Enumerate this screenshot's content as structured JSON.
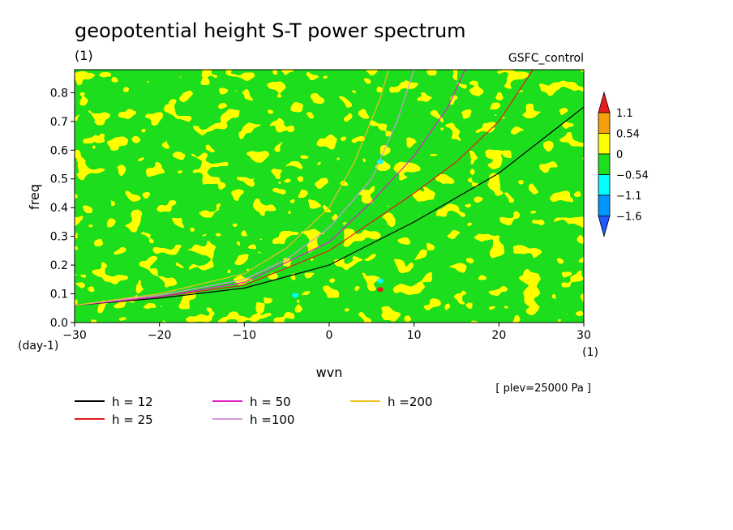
{
  "chart_data": {
    "type": "heatmap",
    "title": "geopotential height S-T power spectrum",
    "units": "(1)",
    "source_label": "GSFC_control",
    "xlabel": "wvn",
    "x_units": "(1)",
    "ylabel": "freq",
    "y_units": "(day-1)",
    "level_note": "[ plev=25000 Pa ]",
    "xlim": [
      -30,
      30
    ],
    "ylim": [
      0,
      0.88
    ],
    "xticks": [
      "−30",
      "−20",
      "−10",
      "0",
      "10",
      "20",
      "30"
    ],
    "yticks": [
      "0.0",
      "0.1",
      "0.2",
      "0.3",
      "0.4",
      "0.5",
      "0.6",
      "0.7",
      "0.8"
    ],
    "colorbar": {
      "labels": [
        "1.1",
        "0.54",
        "0",
        "−0.54",
        "−1.1",
        "−1.6"
      ],
      "colors": [
        "#e81e1e",
        "#f5a00a",
        "#ffff00",
        "#1ede1e",
        "#00ffff",
        "#0096ff",
        "#1e5aff"
      ]
    },
    "field_colors": {
      "positive": "#ffff00",
      "negative": "#1ede1e"
    },
    "spots": [
      {
        "x": 6.0,
        "y": 0.115,
        "level": "1.1"
      },
      {
        "x": 6.0,
        "y": 0.56,
        "level": "−1.1"
      },
      {
        "x": 6.0,
        "y": 0.145,
        "level": "−1.1"
      },
      {
        "x": -4.0,
        "y": 0.095,
        "level": "−1.1"
      }
    ],
    "series": [
      {
        "name": "h = 12",
        "color": "#000000",
        "h": 12,
        "x": [
          -30,
          -20,
          -10,
          0,
          10,
          20,
          30
        ],
        "y": [
          0.06,
          0.085,
          0.12,
          0.2,
          0.35,
          0.52,
          0.75
        ]
      },
      {
        "name": "h = 25",
        "color": "#e41a1a",
        "h": 25,
        "x": [
          -30,
          -20,
          -10,
          0,
          10,
          15,
          20,
          24
        ],
        "y": [
          0.06,
          0.09,
          0.13,
          0.25,
          0.45,
          0.56,
          0.7,
          0.88
        ]
      },
      {
        "name": "h = 50",
        "color": "#e01ec8",
        "h": 50,
        "x": [
          -30,
          -20,
          -10,
          0,
          5,
          10,
          14,
          16
        ],
        "y": [
          0.06,
          0.09,
          0.14,
          0.28,
          0.42,
          0.58,
          0.75,
          0.88
        ]
      },
      {
        "name": "h =100",
        "color": "#d29ad8",
        "h": 100,
        "x": [
          -30,
          -20,
          -10,
          -5,
          0,
          5,
          8,
          10
        ],
        "y": [
          0.06,
          0.095,
          0.15,
          0.22,
          0.33,
          0.5,
          0.7,
          0.88
        ]
      },
      {
        "name": "h =200",
        "color": "#f0c020",
        "h": 200,
        "x": [
          -30,
          -20,
          -10,
          -5,
          0,
          3,
          6,
          7
        ],
        "y": [
          0.06,
          0.1,
          0.17,
          0.26,
          0.4,
          0.56,
          0.78,
          0.88
        ]
      }
    ]
  }
}
